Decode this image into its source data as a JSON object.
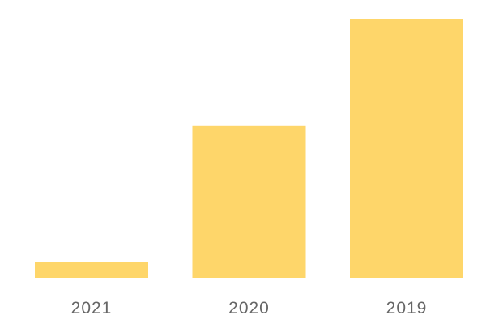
{
  "chart_data": {
    "type": "bar",
    "categories": [
      "2021",
      "2020",
      "2019"
    ],
    "values": [
      6,
      59,
      100
    ],
    "ylim": [
      0,
      100
    ],
    "grid": false,
    "bar_color": "#FED66A",
    "label_color": "#666666"
  }
}
